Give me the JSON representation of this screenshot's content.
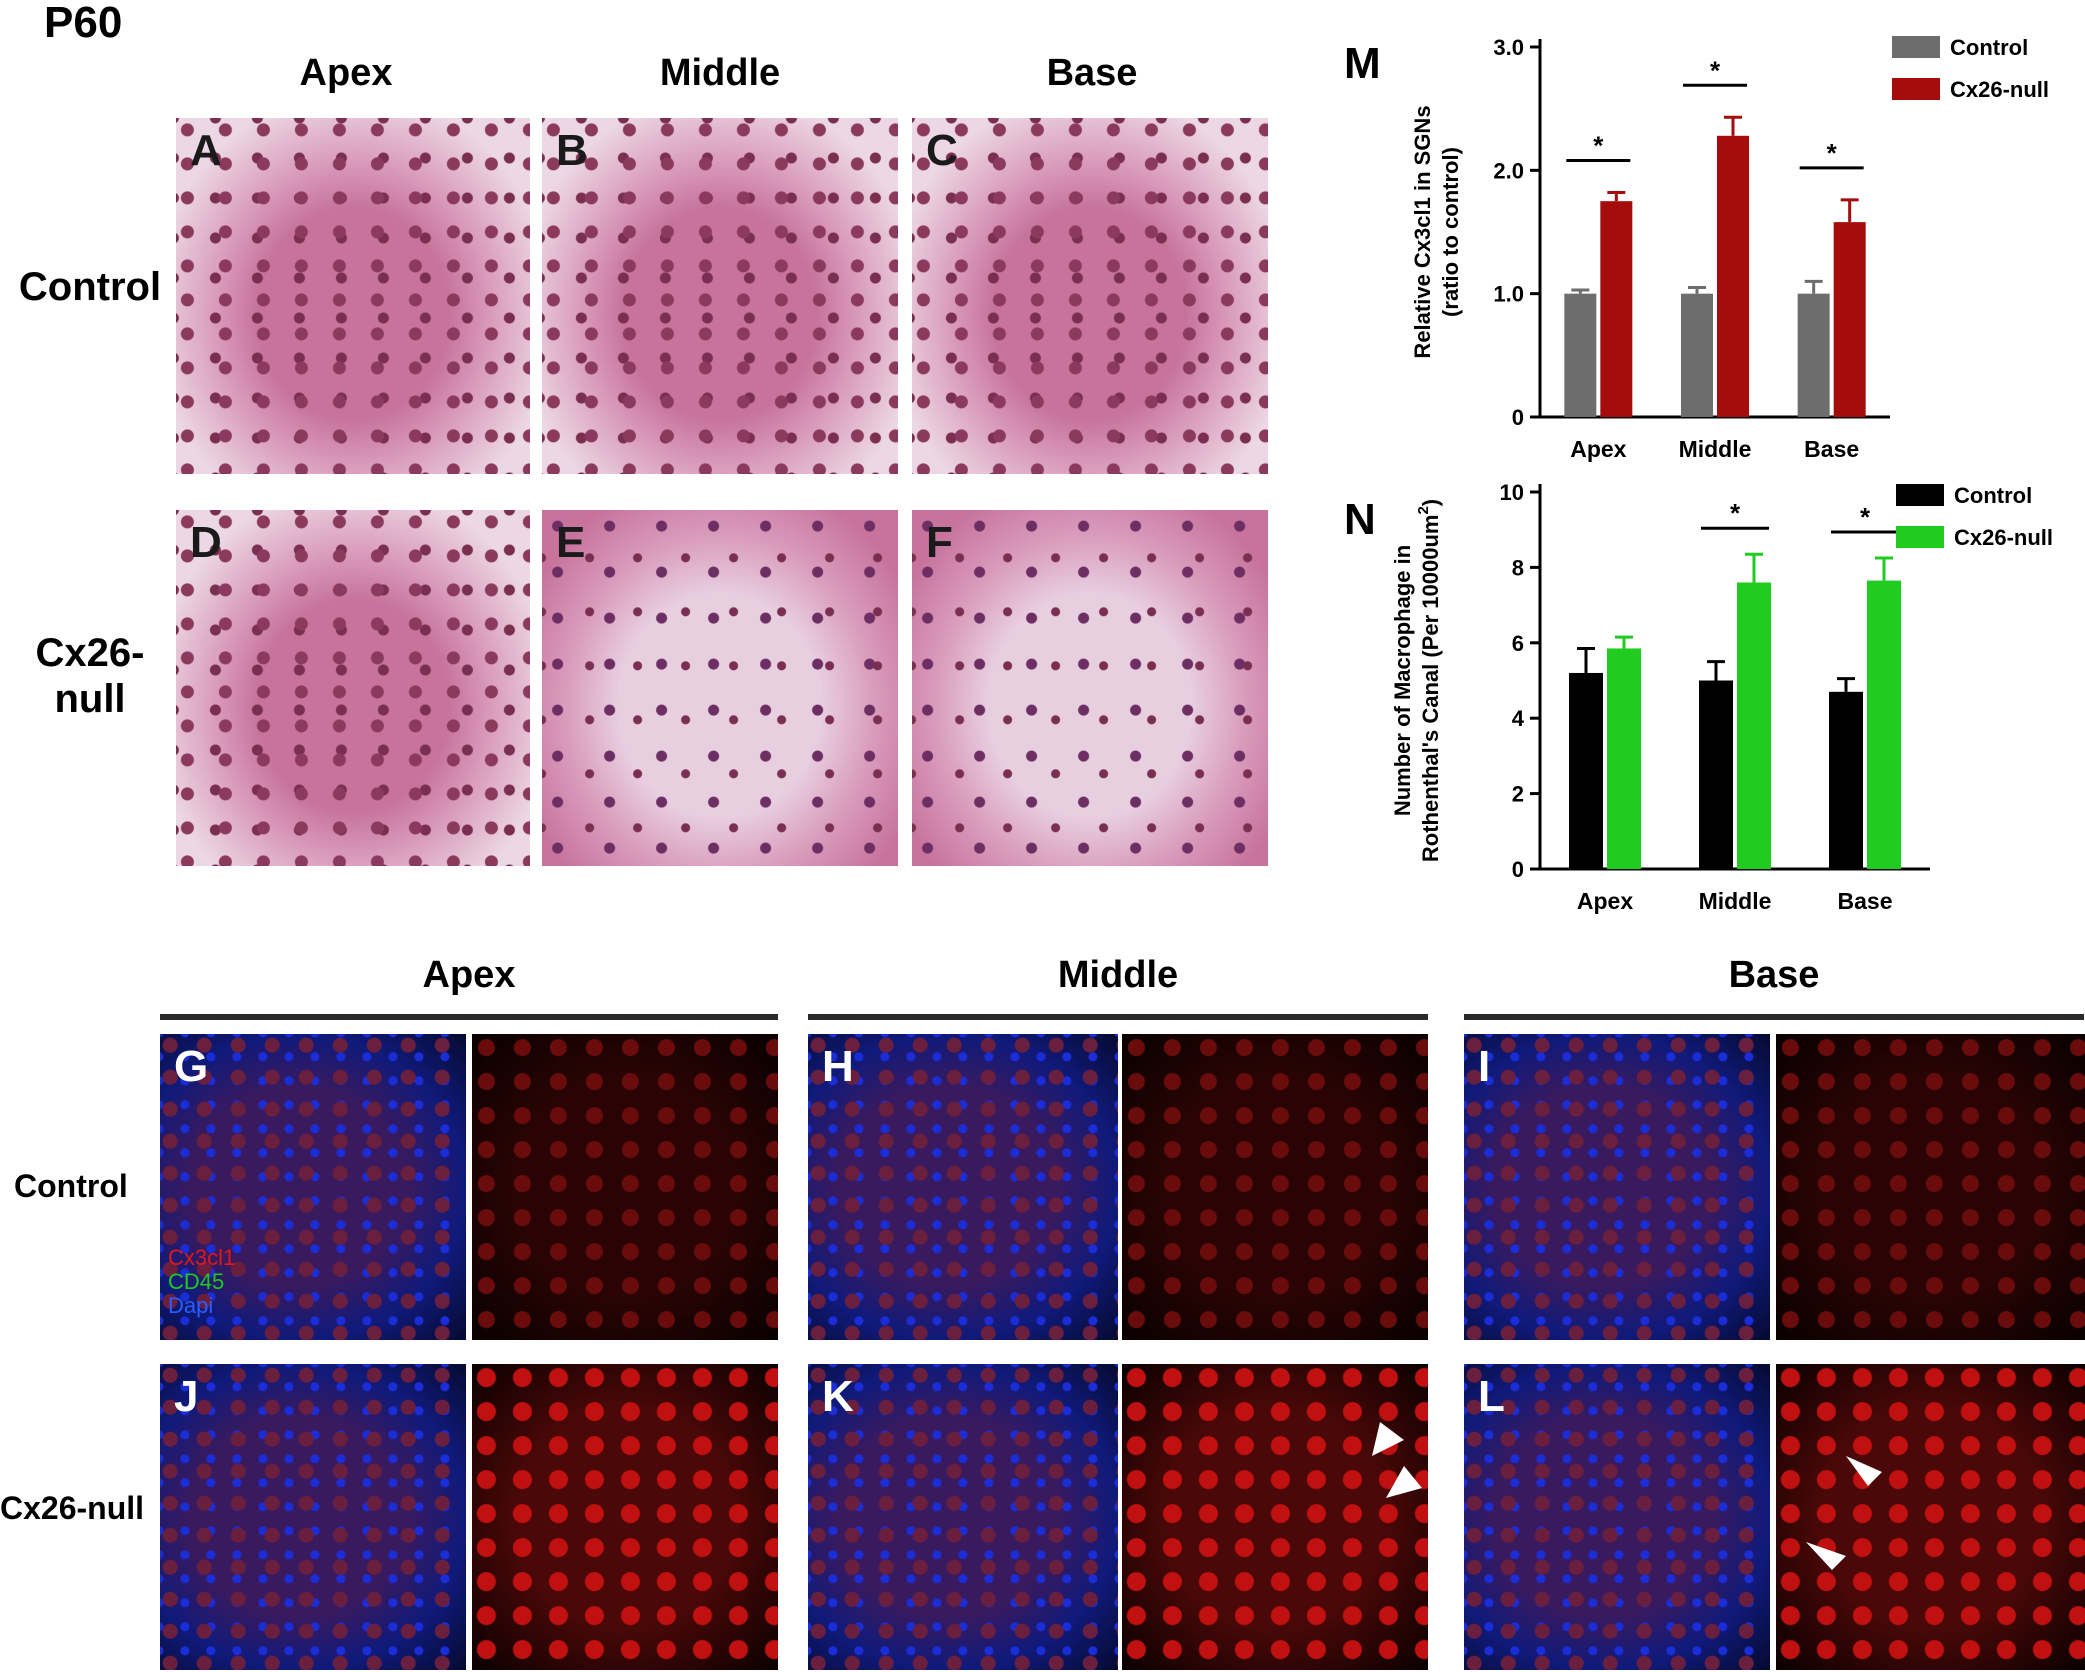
{
  "figure": {
    "age_label": "P60",
    "he_columns": [
      "Apex",
      "Middle",
      "Base"
    ],
    "he_rows": [
      "Control",
      "Cx26-\nnull"
    ],
    "he_panels": [
      "A",
      "B",
      "C",
      "D",
      "E",
      "F"
    ],
    "if_columns": [
      "Apex",
      "Middle",
      "Base"
    ],
    "if_rows": [
      "Control",
      "Cx26-null"
    ],
    "if_panels": [
      "G",
      "H",
      "I",
      "J",
      "K",
      "L"
    ],
    "stain_legend": [
      "Cx3cl1",
      "CD45",
      "Dapi"
    ]
  },
  "chart_data": [
    {
      "panel": "M",
      "type": "bar",
      "ylabel": "Relative Cx3cl1 in SGNs (ratio to control)",
      "ylabel_lines": [
        "Relative Cx3cl1 in SGNs",
        "(ratio to control)"
      ],
      "categories": [
        "Apex",
        "Middle",
        "Base"
      ],
      "ylim": [
        0,
        3.0
      ],
      "yticks": [
        "0",
        "1.0",
        "2.0",
        "3.0"
      ],
      "ytick_values": [
        0,
        1,
        2,
        3
      ],
      "legend_position": "top-right",
      "series": [
        {
          "name": "Control",
          "color": "#6d6d6d",
          "values": [
            1.0,
            1.0,
            1.0
          ],
          "errors": [
            0.03,
            0.05,
            0.1
          ]
        },
        {
          "name": "Cx26-null",
          "color": "#a50c0c",
          "values": [
            1.75,
            2.28,
            1.58
          ],
          "errors": [
            0.07,
            0.15,
            0.18
          ]
        }
      ],
      "significance": [
        "*",
        "*",
        "*"
      ]
    },
    {
      "panel": "N",
      "type": "bar",
      "ylabel_lines": [
        "Number of Macrophage in",
        "Rothenthal's Canal (Per 10000um"
      ],
      "ylabel_superscript": "2",
      "ylabel_close": ")",
      "categories": [
        "Apex",
        "Middle",
        "Base"
      ],
      "ylim": [
        0,
        10
      ],
      "yticks": [
        "0",
        "2",
        "4",
        "6",
        "8",
        "10"
      ],
      "ytick_values": [
        0,
        2,
        4,
        6,
        8,
        10
      ],
      "legend_position": "top-right",
      "series": [
        {
          "name": "Control",
          "color": "#000000",
          "values": [
            5.2,
            5.0,
            4.7
          ],
          "errors": [
            0.65,
            0.5,
            0.35
          ]
        },
        {
          "name": "Cx26-null",
          "color": "#1fcc1f",
          "values": [
            5.85,
            7.6,
            7.65
          ],
          "errors": [
            0.3,
            0.75,
            0.6
          ]
        }
      ],
      "significance": [
        "",
        "*",
        "*"
      ]
    }
  ]
}
